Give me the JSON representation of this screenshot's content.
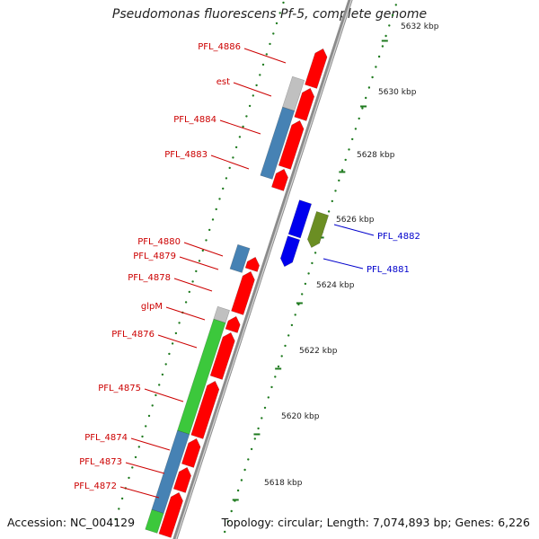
{
  "title": "Pseudomonas fluorescens Pf-5, complete genome",
  "accession": "Accession: NC_004129",
  "summary": "Topology: circular; Length: 7,074,893 bp; Genes: 6,226",
  "colors": {
    "backbone": "#8c8c8c",
    "reverse_label": "#cc0000",
    "forward_label": "#0000cc",
    "cds_red": "#ff0000",
    "gene_blue": "#4682b4",
    "gene_green": "#3cc83c",
    "gene_grey": "#c0c0c0",
    "gene_olive": "#6b8e23",
    "gene_darkblue": "#0000ee",
    "tick_green": "#1e7a1e"
  },
  "scale_labels": [
    {
      "text": "5632 kbp"
    },
    {
      "text": "5630 kbp"
    },
    {
      "text": "5628 kbp"
    },
    {
      "text": "5626 kbp"
    },
    {
      "text": "5624 kbp"
    },
    {
      "text": "5622 kbp"
    },
    {
      "text": "5620 kbp"
    },
    {
      "text": "5618 kbp"
    }
  ],
  "reverse_genes": [
    {
      "label": "PFL_4886"
    },
    {
      "label": "est"
    },
    {
      "label": "PFL_4884"
    },
    {
      "label": "PFL_4883"
    },
    {
      "label": "PFL_4880"
    },
    {
      "label": "PFL_4879"
    },
    {
      "label": "PFL_4878"
    },
    {
      "label": "glpM"
    },
    {
      "label": "PFL_4876"
    },
    {
      "label": "PFL_4875"
    },
    {
      "label": "PFL_4874"
    },
    {
      "label": "PFL_4873"
    },
    {
      "label": "PFL_4872"
    }
  ],
  "forward_genes": [
    {
      "label": "PFL_4882"
    },
    {
      "label": "PFL_4881"
    }
  ]
}
